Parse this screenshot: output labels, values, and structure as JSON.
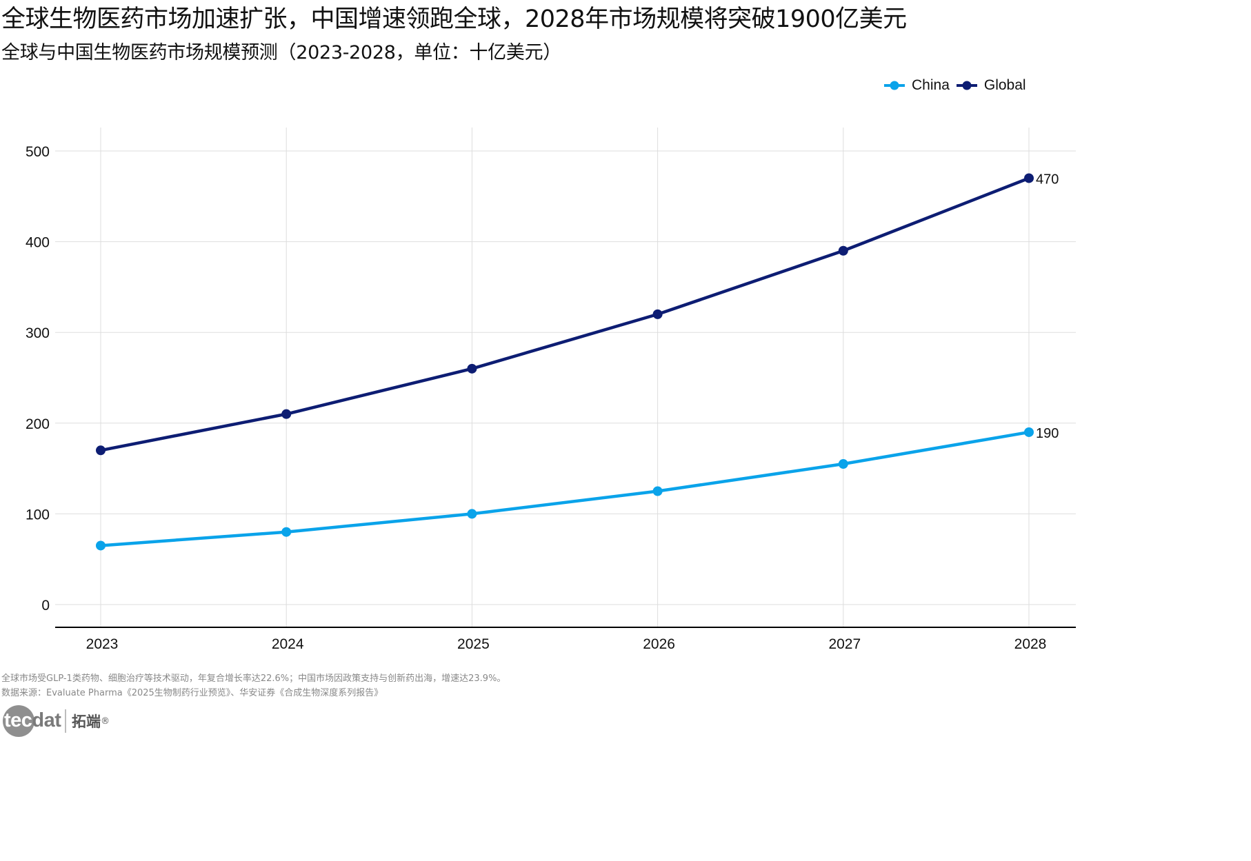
{
  "header": {
    "title": "全球生物医药市场加速扩张，中国增速领跑全球，2028年市场规模将突破1900亿美元",
    "subtitle": "全球与中国生物医药市场规模预测（2023-2028，单位：十亿美元）"
  },
  "colors": {
    "China": "#0aa3ea",
    "Global": "#0d1d73",
    "grid": "#dddddd",
    "axis": "#000000"
  },
  "chart_data": {
    "type": "line",
    "categories": [
      "2023",
      "2024",
      "2025",
      "2026",
      "2027",
      "2028"
    ],
    "series": [
      {
        "name": "China",
        "values": [
          65,
          80,
          100,
          125,
          155,
          190
        ]
      },
      {
        "name": "Global",
        "values": [
          170,
          210,
          260,
          320,
          390,
          470
        ]
      }
    ],
    "yticks": [
      "0",
      "100",
      "200",
      "300",
      "400",
      "500"
    ],
    "ylim": [
      0,
      500
    ],
    "end_labels": {
      "China": "190",
      "Global": "470"
    },
    "grid": true,
    "legend_position": "top-right"
  },
  "footer": {
    "note": "全球市场受GLP-1类药物、细胞治疗等技术驱动，年复合增长率达22.6%；中国市场因政策支持与创新药出海，增速达23.9%。",
    "source": "数据来源：Evaluate Pharma《2025生物制药行业预览》、华安证券《合成生物深度系列报告》"
  },
  "logo": {
    "word_part1": "tec",
    "word_part2": "dat",
    "cn": "拓端",
    "reg": "®"
  }
}
